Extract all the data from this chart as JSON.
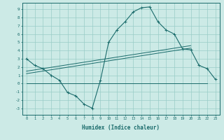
{
  "xlabel": "Humidex (Indice chaleur)",
  "bg_color": "#cceae6",
  "line_color": "#1a6b6b",
  "grid_color": "#99ccc7",
  "x_ticks": [
    0,
    1,
    2,
    3,
    4,
    5,
    6,
    7,
    8,
    9,
    10,
    11,
    12,
    13,
    14,
    15,
    16,
    17,
    18,
    19,
    20,
    21,
    22,
    23
  ],
  "y_ticks": [
    -3,
    -2,
    -1,
    0,
    1,
    2,
    3,
    4,
    5,
    6,
    7,
    8,
    9
  ],
  "ylim": [
    -3.8,
    9.8
  ],
  "xlim": [
    -0.5,
    23.5
  ],
  "main_x": [
    0,
    1,
    2,
    3,
    4,
    5,
    6,
    7,
    8,
    9,
    10,
    11,
    12,
    13,
    14,
    15,
    16,
    17,
    18,
    19,
    20,
    21,
    22,
    23
  ],
  "main_y": [
    3.0,
    2.2,
    1.8,
    1.0,
    0.4,
    -1.1,
    -1.5,
    -2.5,
    -3.0,
    0.4,
    5.0,
    6.5,
    7.5,
    8.7,
    9.2,
    9.3,
    7.5,
    6.5,
    6.0,
    4.2,
    4.1,
    2.2,
    1.8,
    0.5
  ],
  "line1_x": [
    0,
    20
  ],
  "line1_y": [
    1.2,
    4.3
  ],
  "line2_x": [
    0,
    20
  ],
  "line2_y": [
    1.5,
    4.6
  ],
  "line3_x": [
    0,
    22
  ],
  "line3_y": [
    0.0,
    0.0
  ]
}
